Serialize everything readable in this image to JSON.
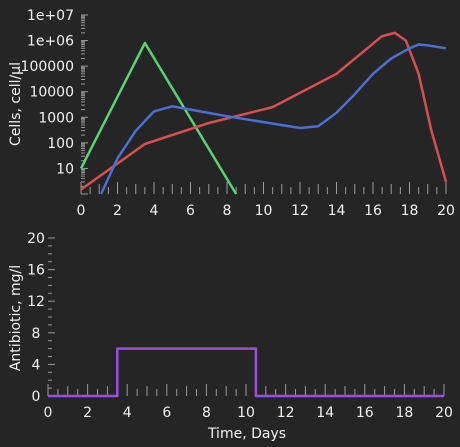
{
  "colors": {
    "background": "#252525",
    "text": "#f2f2f2",
    "tick": "#9a9a9a",
    "green": "#57d473",
    "red": "#d94f4f",
    "blue": "#4a6fd6",
    "purple": "#9b4fe0"
  },
  "chart_data": [
    {
      "type": "line",
      "ylabel": "Cells, cell/µl",
      "xlabel": "",
      "yscale": "log",
      "xlim": [
        0,
        20
      ],
      "ylim": [
        1,
        10000000
      ],
      "grid": false,
      "legend": "none",
      "x_ticks": [
        "0",
        "2",
        "4",
        "6",
        "8",
        "10",
        "12",
        "14",
        "16",
        "18",
        "20"
      ],
      "y_ticks": [
        "10",
        "100",
        "1000",
        "10000",
        "100000",
        "1e+06",
        "1e+07"
      ],
      "series": [
        {
          "color": "#57d473",
          "points": [
            [
              0,
              10
            ],
            [
              3.5,
              800000
            ],
            [
              8.5,
              1
            ]
          ]
        },
        {
          "color": "#d94f4f",
          "points": [
            [
              0,
              1.5
            ],
            [
              3.5,
              90
            ],
            [
              7,
              600
            ],
            [
              10.5,
              2500
            ],
            [
              14,
              50000
            ],
            [
              16.5,
              1500000
            ],
            [
              17.2,
              2000000
            ],
            [
              17.8,
              1000000
            ],
            [
              18.5,
              50000
            ],
            [
              19.2,
              300
            ],
            [
              20,
              3
            ]
          ]
        },
        {
          "color": "#4a6fd6",
          "points": [
            [
              1.1,
              1
            ],
            [
              2,
              25
            ],
            [
              3,
              300
            ],
            [
              4,
              1700
            ],
            [
              5,
              2700
            ],
            [
              6,
              2000
            ],
            [
              8,
              1100
            ],
            [
              10,
              650
            ],
            [
              12,
              380
            ],
            [
              13,
              450
            ],
            [
              14,
              1500
            ],
            [
              15,
              8000
            ],
            [
              16,
              50000
            ],
            [
              17,
              200000
            ],
            [
              18,
              500000
            ],
            [
              18.5,
              700000
            ],
            [
              19,
              650000
            ],
            [
              20,
              500000
            ]
          ]
        }
      ]
    },
    {
      "type": "line",
      "ylabel": "Antibiotic, mg/l",
      "xlabel": "Time, Days",
      "xlim": [
        0,
        20
      ],
      "ylim": [
        0,
        20
      ],
      "grid": false,
      "legend": "none",
      "x_ticks": [
        "0",
        "2",
        "4",
        "6",
        "8",
        "10",
        "12",
        "14",
        "16",
        "18",
        "20"
      ],
      "y_ticks": [
        "0",
        "4",
        "8",
        "12",
        "16",
        "20"
      ],
      "series": [
        {
          "color": "#9b4fe0",
          "points": [
            [
              0,
              0
            ],
            [
              3.5,
              0
            ],
            [
              3.5,
              6
            ],
            [
              10.5,
              6
            ],
            [
              10.5,
              0
            ],
            [
              20,
              0
            ]
          ]
        }
      ]
    }
  ]
}
